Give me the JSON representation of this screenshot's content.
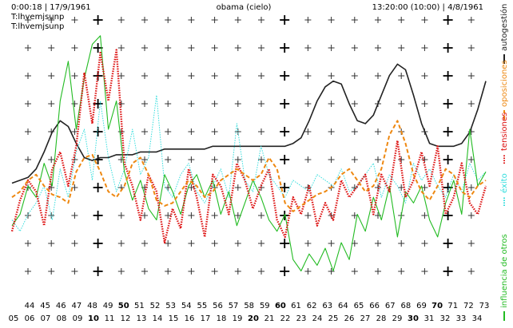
{
  "chart_data": {
    "type": "line",
    "time_left": "0:00:18 | 17/9/1961",
    "title": "obama (cielo)",
    "time_right": "13:20:00 (10:00) | 4/8/1961",
    "subtitles": [
      "T:lhvemjsunp",
      "T:lhvemjsunp"
    ],
    "categories": [
      "44",
      "45",
      "46",
      "47",
      "48",
      "49",
      "50",
      "51",
      "52",
      "53",
      "54",
      "55",
      "56",
      "57",
      "58",
      "59",
      "60",
      "61",
      "62",
      "63",
      "64",
      "65",
      "66",
      "67",
      "68",
      "69",
      "70",
      "71",
      "72",
      "73"
    ],
    "categories_bottom": [
      "05",
      "06",
      "07",
      "08",
      "09",
      "10",
      "11",
      "12",
      "13",
      "14",
      "15",
      "16",
      "17",
      "18",
      "19",
      "20",
      "21",
      "22",
      "23",
      "24",
      "25",
      "26",
      "27",
      "28",
      "29",
      "30",
      "31",
      "32",
      "33",
      "34"
    ],
    "x": [
      0,
      1,
      2,
      3,
      4,
      5,
      6,
      7,
      8,
      9,
      10,
      11,
      12,
      13,
      14,
      15,
      16,
      17,
      18,
      19,
      20,
      21,
      22,
      23,
      24,
      25,
      26,
      27,
      28,
      29,
      30,
      31,
      32,
      33,
      34,
      35,
      36,
      37,
      38,
      39,
      40,
      41,
      42,
      43,
      44,
      45,
      46,
      47,
      48,
      49,
      50,
      51,
      52,
      53,
      54,
      55,
      56,
      57,
      58,
      59
    ],
    "xlim": [
      0,
      59
    ],
    "ylim": [
      0,
      100
    ],
    "series": [
      {
        "name": "autogestión",
        "color": "#222222",
        "style": "solid",
        "width": 1.6,
        "values": [
          41,
          42,
          43,
          46,
          52,
          59,
          63,
          61,
          55,
          50,
          49,
          50,
          50,
          51,
          51,
          51,
          52,
          52,
          52,
          53,
          53,
          53,
          53,
          53,
          53,
          54,
          54,
          54,
          54,
          54,
          54,
          54,
          54,
          54,
          54,
          55,
          57,
          63,
          70,
          75,
          77,
          76,
          69,
          63,
          62,
          65,
          72,
          79,
          83,
          81,
          72,
          62,
          55,
          54,
          54,
          54,
          55,
          59,
          67,
          77
        ]
      },
      {
        "name": "éxito",
        "color": "#33dddd",
        "style": "dotted",
        "width": 1,
        "values": [
          28,
          24,
          30,
          34,
          40,
          28,
          46,
          36,
          52,
          60,
          42,
          70,
          50,
          38,
          46,
          60,
          44,
          50,
          72,
          40,
          36,
          44,
          48,
          38,
          34,
          40,
          46,
          36,
          62,
          42,
          38,
          54,
          44,
          40,
          36,
          42,
          40,
          38,
          44,
          42,
          40,
          46,
          38,
          40,
          44,
          48,
          36,
          44,
          40,
          34,
          48,
          42,
          46,
          40,
          36,
          44,
          38,
          48,
          42,
          45
        ]
      },
      {
        "name": "influencia de otros",
        "color": "#22bb22",
        "style": "solid",
        "width": 1.1,
        "values": [
          26,
          30,
          40,
          36,
          48,
          40,
          70,
          84,
          60,
          78,
          90,
          93,
          60,
          70,
          45,
          35,
          42,
          32,
          28,
          44,
          38,
          30,
          40,
          44,
          36,
          42,
          30,
          38,
          26,
          34,
          42,
          36,
          28,
          24,
          30,
          14,
          10,
          16,
          12,
          18,
          10,
          20,
          14,
          30,
          24,
          36,
          28,
          40,
          22,
          38,
          34,
          40,
          28,
          22,
          34,
          42,
          30,
          60,
          40,
          45
        ]
      },
      {
        "name": "tensiones",
        "color": "#dd1111",
        "style": "dotted",
        "width": 2.4,
        "values": [
          24,
          35,
          42,
          38,
          26,
          46,
          52,
          40,
          54,
          80,
          62,
          87,
          70,
          88,
          48,
          40,
          28,
          44,
          38,
          20,
          32,
          25,
          46,
          36,
          22,
          44,
          40,
          30,
          48,
          42,
          32,
          40,
          46,
          28,
          22,
          36,
          30,
          40,
          26,
          34,
          28,
          42,
          36,
          40,
          44,
          30,
          44,
          38,
          56,
          36,
          42,
          52,
          40,
          54,
          30,
          36,
          48,
          34,
          30,
          40
        ]
      },
      {
        "name": "oposiciones",
        "color": "#ee8811",
        "style": "dashed",
        "width": 2,
        "values": [
          36,
          38,
          42,
          44,
          40,
          37,
          36,
          34,
          45,
          50,
          51,
          45,
          38,
          36,
          40,
          48,
          50,
          44,
          35,
          33,
          34,
          38,
          42,
          40,
          36,
          38,
          42,
          44,
          46,
          44,
          42,
          44,
          50,
          46,
          34,
          31,
          33,
          35,
          37,
          38,
          40,
          44,
          46,
          42,
          38,
          40,
          46,
          58,
          63,
          55,
          44,
          38,
          35,
          40,
          46,
          44,
          38,
          36,
          40,
          42
        ]
      }
    ]
  }
}
